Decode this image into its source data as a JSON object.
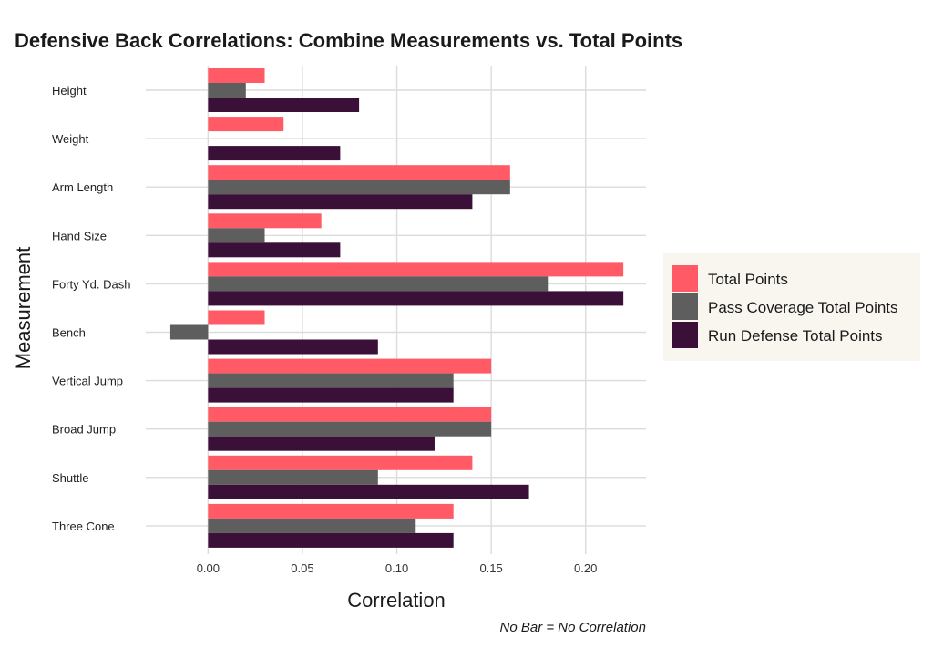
{
  "chart_data": {
    "type": "bar",
    "orientation": "horizontal",
    "title": "Defensive Back Correlations: Combine Measurements vs. Total Points",
    "xlabel": "Correlation",
    "ylabel": "Measurement",
    "caption": "No Bar = No Correlation",
    "xlim": [
      -0.033,
      0.232
    ],
    "xticks": [
      0.0,
      0.05,
      0.1,
      0.15,
      0.2
    ],
    "xtick_labels": [
      "0.00",
      "0.05",
      "0.10",
      "0.15",
      "0.20"
    ],
    "grid": true,
    "legend_position": "right",
    "categories": [
      "Height",
      "Weight",
      "Arm Length",
      "Hand Size",
      "Forty Yd. Dash",
      "Bench",
      "Vertical Jump",
      "Broad Jump",
      "Shuttle",
      "Three Cone"
    ],
    "series": [
      {
        "name": "Total Points",
        "color": "#FF5A65",
        "values": [
          0.03,
          0.04,
          0.16,
          0.06,
          0.22,
          0.03,
          0.15,
          0.15,
          0.14,
          0.13
        ]
      },
      {
        "name": "Pass Coverage Total Points",
        "color": "#5E5E5E",
        "values": [
          0.02,
          0.0,
          0.16,
          0.03,
          0.18,
          -0.02,
          0.13,
          0.15,
          0.09,
          0.11
        ]
      },
      {
        "name": "Run Defense Total Points",
        "color": "#3B1038",
        "values": [
          0.08,
          0.07,
          0.14,
          0.07,
          0.22,
          0.09,
          0.13,
          0.12,
          0.17,
          0.13
        ]
      }
    ],
    "legend_background": "#F8F6EF"
  }
}
